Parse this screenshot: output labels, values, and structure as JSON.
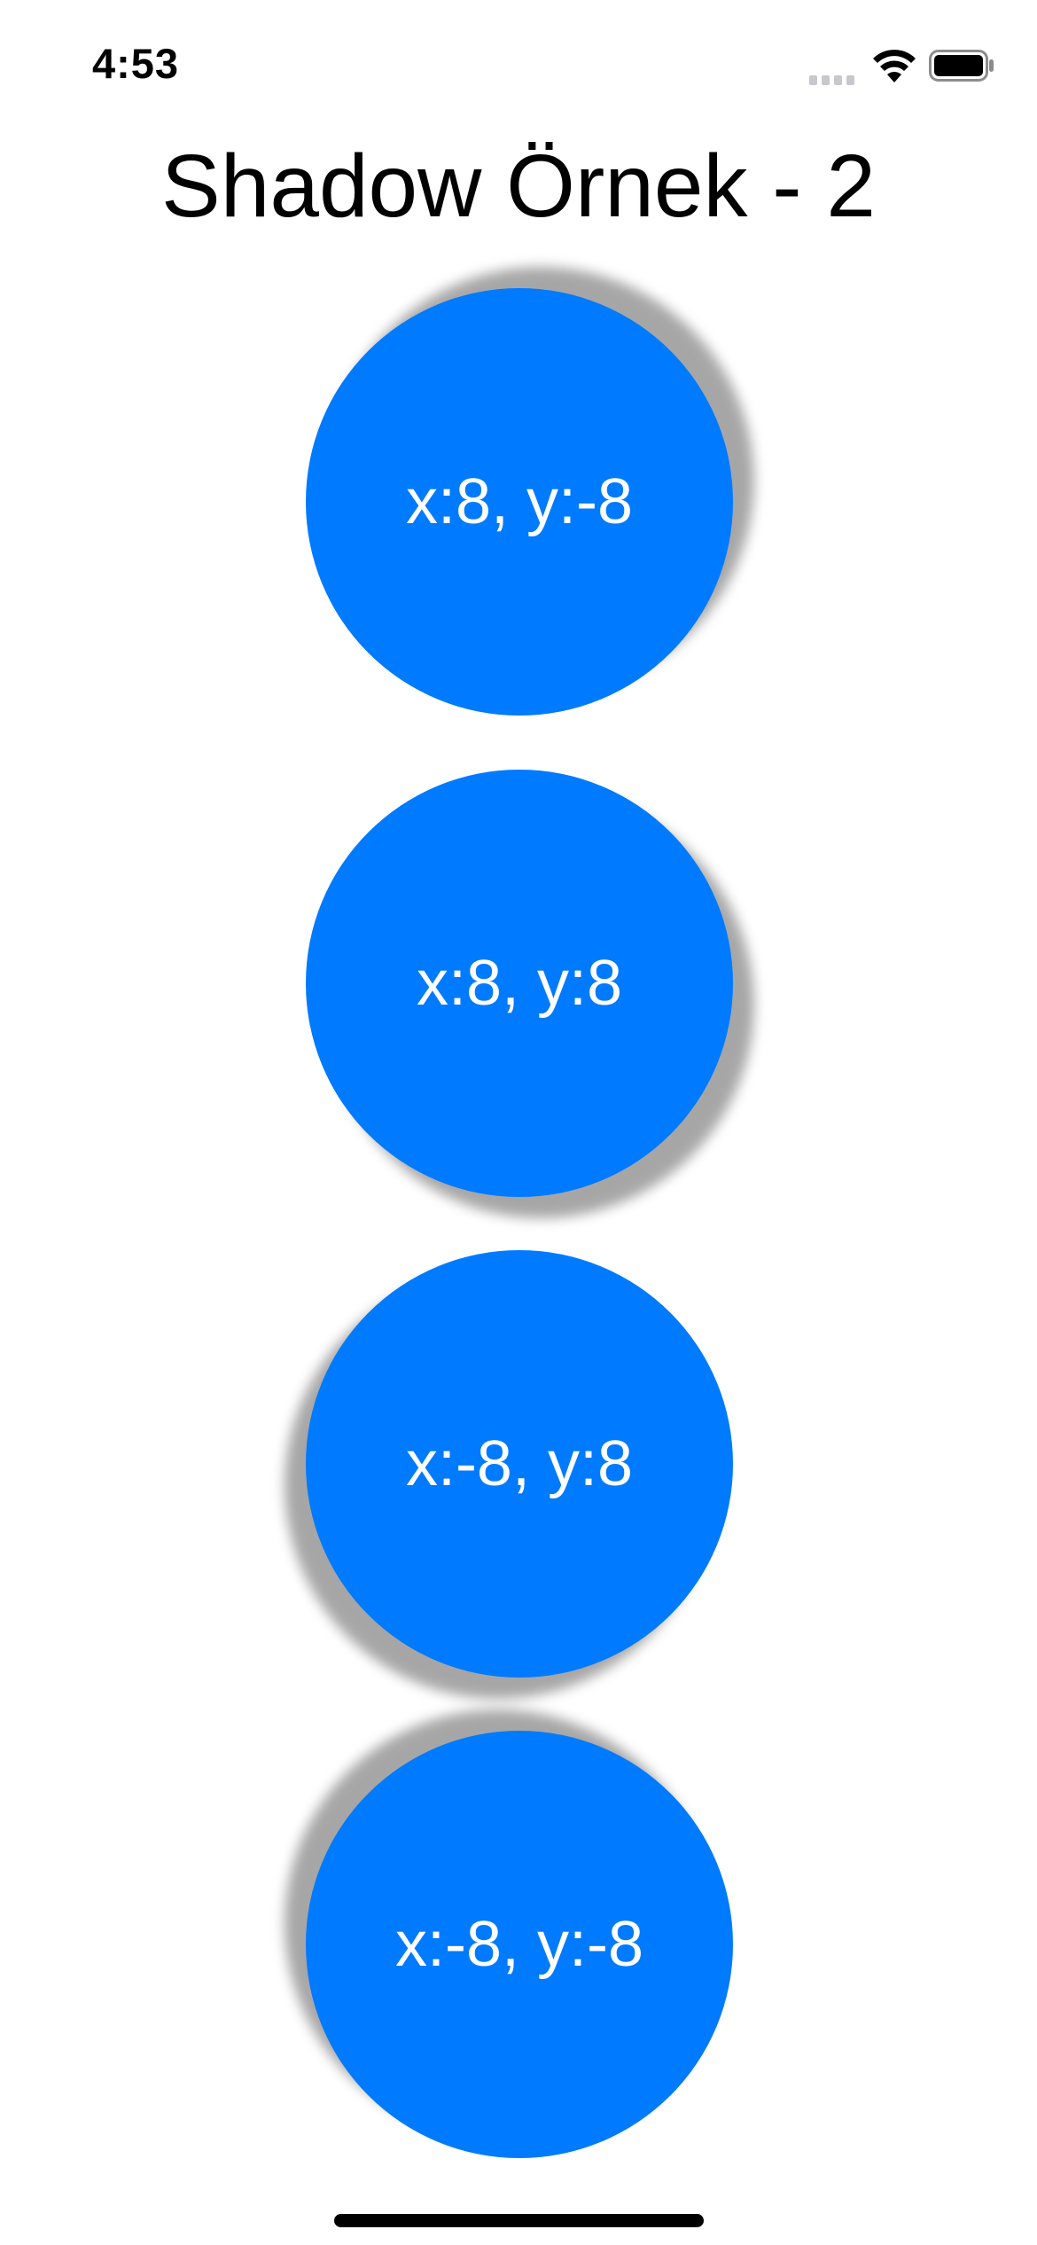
{
  "status_bar": {
    "time": "4:53",
    "icons": [
      "cellular-signal-icon",
      "wifi-icon",
      "battery-icon"
    ]
  },
  "title": "Shadow Örnek - 2",
  "buttons": [
    {
      "label": "x:8, y:-8"
    },
    {
      "label": "x:8, y:8"
    },
    {
      "label": "x:-8, y:8"
    },
    {
      "label": "x:-8, y:-8"
    }
  ],
  "colors": {
    "accent": "#007aff",
    "button_text": "#ffffff",
    "background": "#ffffff",
    "shadow": "#9e9e9e"
  }
}
